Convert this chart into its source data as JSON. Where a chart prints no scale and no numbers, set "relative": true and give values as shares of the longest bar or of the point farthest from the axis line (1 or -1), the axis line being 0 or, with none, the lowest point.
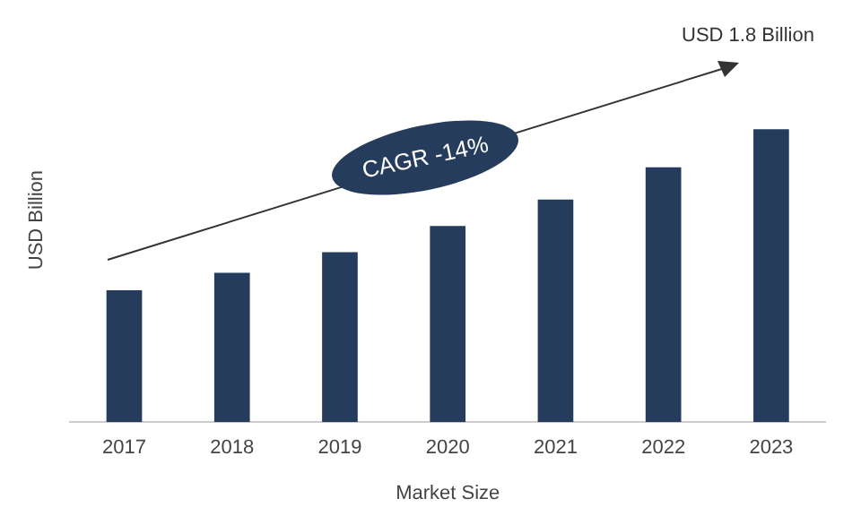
{
  "chart_data": {
    "type": "bar",
    "xlabel": "Market Size",
    "ylabel": "USD Billion",
    "categories": [
      "2017",
      "2018",
      "2019",
      "2020",
      "2021",
      "2022",
      "2023"
    ],
    "values": [
      0.45,
      0.51,
      0.58,
      0.67,
      0.76,
      0.87,
      1
    ],
    "color": "#263c5c",
    "relative": true,
    "grid": false,
    "legend": false,
    "annotations": [
      "USD 1.8 Billion",
      "CAGR -14%"
    ]
  }
}
